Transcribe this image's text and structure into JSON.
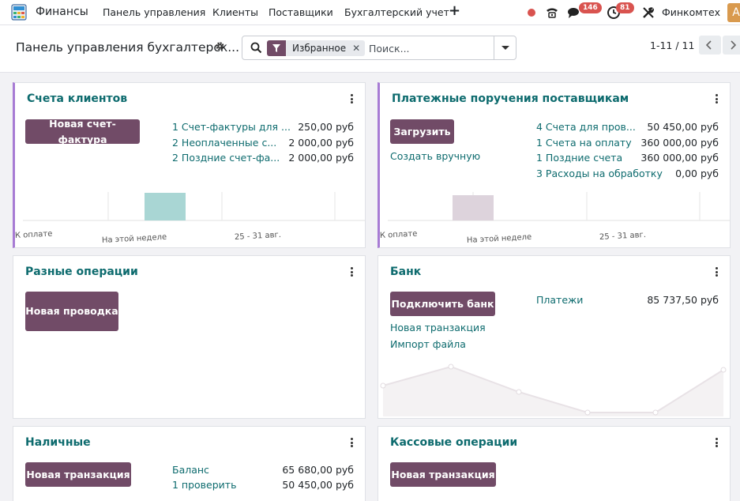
{
  "navbar": {
    "app_name": "Финансы",
    "menu": [
      "Панель управления",
      "Клиенты",
      "Поставщики",
      "Бухгалтерский учет"
    ],
    "messages_count": "146",
    "activities_count": "81",
    "company": "Финкомтех",
    "avatar_letter": "A",
    "icons": [
      "app-icon",
      "plus-icon",
      "phone-icon",
      "chat-icon",
      "clock-icon",
      "tools-icon"
    ]
  },
  "control_panel": {
    "breadcrumb": "Панель управления бухгалтерск...",
    "search": {
      "facet_label": "Избранное",
      "facet_remove": "✕",
      "placeholder": "Поиск..."
    },
    "pager": "1-11 / 11"
  },
  "cards": {
    "customer_invoices": {
      "title": "Счета клиентов",
      "button": "Новая счет-фактура",
      "rows": [
        {
          "label": "1 Счет-фактуры для ...",
          "amount": "250,00 руб"
        },
        {
          "label": "2 Неоплаченные с...",
          "amount": "2 000,00 руб"
        },
        {
          "label": "2 Поздние счет-фа...",
          "amount": "2 000,00 руб"
        }
      ],
      "chart_labels": [
        "К оплате",
        "На этой неделе",
        "25 - 31 авг."
      ],
      "bar_color": "#a9d6d4"
    },
    "vendor_bills": {
      "title": "Платежные поручения поставщикам",
      "button": "Загрузить",
      "create_link": "Создать вручную",
      "rows": [
        {
          "label": "4 Счета для пров...",
          "amount": "50 450,00 руб"
        },
        {
          "label": "1 Счета на оплату",
          "amount": "360 000,00 руб"
        },
        {
          "label": "1 Поздние счета",
          "amount": "360 000,00 руб"
        },
        {
          "label": "3 Расходы на обработку",
          "amount": "0,00 руб"
        }
      ],
      "chart_labels": [
        "К оплате",
        "На этой неделе",
        "25 - 31 авг."
      ],
      "bar_color": "#ddd3dc"
    },
    "misc": {
      "title": "Разные операции",
      "button": "Новая проводка"
    },
    "bank": {
      "title": "Банк",
      "button": "Подключить банк",
      "links": [
        "Новая транзакция",
        "Импорт файла"
      ],
      "payments_label": "Платежи",
      "payments_amount": "85 737,50 руб"
    },
    "cash": {
      "title": "Наличные",
      "button": "Новая транзакция",
      "rows": [
        {
          "label": "Баланс",
          "amount": "65 680,00 руб"
        },
        {
          "label": "1 проверить",
          "amount": "50 450,00 руб"
        }
      ]
    },
    "cash_ops": {
      "title": "Кассовые операции",
      "button": "Новая транзакция"
    }
  },
  "colors": {
    "accent_teal": "#0d6b6e",
    "brand_button": "#714b67",
    "badge_red": "#d9534f",
    "card_left_accent": "#a77bd4"
  }
}
